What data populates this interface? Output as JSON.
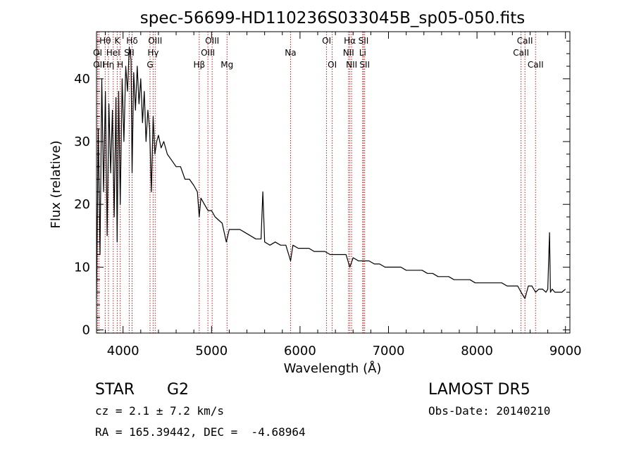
{
  "chart_data": {
    "type": "line",
    "title": "spec-56699-HD110236S033045B_sp05-050.fits",
    "xlabel": "Wavelength (Å)",
    "ylabel": "Flux (relative)",
    "xlim": [
      3700,
      9050
    ],
    "ylim": [
      -0.5,
      47.5
    ],
    "x_ticks": [
      4000,
      5000,
      6000,
      7000,
      8000,
      9000
    ],
    "x_tick_labels": [
      "4000",
      "5000",
      "6000",
      "7000",
      "8000",
      "9000"
    ],
    "x_minor_step": 200,
    "y_ticks": [
      0,
      10,
      20,
      30,
      40
    ],
    "y_tick_labels": [
      "0",
      "10",
      "20",
      "30",
      "40"
    ],
    "y_minor_step": 2,
    "grid": false,
    "line_color": "#000000",
    "marker_color": "#b22222",
    "spectrum": {
      "x": [
        3700,
        3720,
        3740,
        3760,
        3780,
        3800,
        3820,
        3840,
        3860,
        3880,
        3900,
        3920,
        3933,
        3950,
        3968,
        3990,
        4010,
        4030,
        4050,
        4070,
        4090,
        4102,
        4120,
        4140,
        4160,
        4180,
        4200,
        4220,
        4240,
        4260,
        4280,
        4300,
        4320,
        4340,
        4360,
        4380,
        4400,
        4430,
        4460,
        4500,
        4550,
        4600,
        4650,
        4700,
        4750,
        4800,
        4840,
        4861,
        4880,
        4920,
        4960,
        5000,
        5040,
        5080,
        5120,
        5167,
        5200,
        5260,
        5320,
        5380,
        5440,
        5500,
        5560,
        5580,
        5600,
        5660,
        5720,
        5780,
        5840,
        5893,
        5920,
        5980,
        6040,
        6100,
        6160,
        6220,
        6280,
        6340,
        6400,
        6460,
        6520,
        6563,
        6600,
        6660,
        6720,
        6780,
        6840,
        6900,
        6960,
        7020,
        7080,
        7140,
        7200,
        7260,
        7320,
        7380,
        7440,
        7500,
        7560,
        7620,
        7680,
        7740,
        7800,
        7860,
        7920,
        7980,
        8040,
        8100,
        8160,
        8220,
        8280,
        8340,
        8400,
        8460,
        8498,
        8542,
        8580,
        8620,
        8662,
        8700,
        8740,
        8780,
        8800,
        8820,
        8830,
        8850,
        8880,
        8920,
        8960,
        9000
      ],
      "y": [
        5,
        32,
        12,
        40,
        22,
        38,
        15,
        36,
        25,
        35,
        18,
        37,
        14,
        38,
        20,
        40,
        30,
        42,
        38,
        45,
        43,
        25,
        41,
        35,
        42,
        36,
        40,
        33,
        38,
        30,
        35,
        32,
        22,
        34,
        28,
        30,
        31,
        29,
        30,
        28,
        27,
        26,
        26,
        24,
        24,
        23,
        22,
        18,
        21,
        20,
        19,
        19,
        18,
        17.5,
        17,
        14,
        16,
        16,
        16,
        15.5,
        15,
        14.5,
        14.5,
        22,
        14,
        13.5,
        14,
        13.5,
        13.5,
        11,
        13.5,
        13,
        13,
        13,
        12.5,
        12.5,
        12.5,
        12,
        12,
        12,
        12,
        10,
        11.5,
        11,
        11,
        11,
        10.5,
        10.5,
        10,
        10,
        10,
        10,
        9.5,
        9.5,
        9.5,
        9.5,
        9,
        9,
        8.5,
        8.5,
        8.5,
        8,
        8,
        8,
        8,
        7.5,
        7.5,
        7.5,
        7.5,
        7.5,
        7.5,
        7,
        7,
        7,
        6,
        5,
        7,
        7,
        6,
        6.5,
        6.5,
        6,
        6.5,
        15.5,
        6,
        6.5,
        6,
        6,
        6,
        6.5
      ]
    },
    "line_markers": [
      {
        "label": "Hθ",
        "wavelength": 3798,
        "row": 0
      },
      {
        "label": "OI",
        "wavelength": 3712,
        "row": 1
      },
      {
        "label": "OII",
        "wavelength": 3727,
        "row": 2
      },
      {
        "label": "Hη",
        "wavelength": 3835,
        "row": 2
      },
      {
        "label": "HeI",
        "wavelength": 3889,
        "row": 1
      },
      {
        "label": "K",
        "wavelength": 3934,
        "row": 0
      },
      {
        "label": "H",
        "wavelength": 3968,
        "row": 2
      },
      {
        "label": "SII",
        "wavelength": 4070,
        "row": 1
      },
      {
        "label": "Hδ",
        "wavelength": 4102,
        "row": 0
      },
      {
        "label": "OIII",
        "wavelength": 4363,
        "row": 0
      },
      {
        "label": "Hγ",
        "wavelength": 4340,
        "row": 1
      },
      {
        "label": "G",
        "wavelength": 4305,
        "row": 2
      },
      {
        "label": "Hβ",
        "wavelength": 4861,
        "row": 2
      },
      {
        "label": "OIII",
        "wavelength": 5007,
        "row": 0
      },
      {
        "label": "OIII",
        "wavelength": 4959,
        "row": 1
      },
      {
        "label": "Mg",
        "wavelength": 5175,
        "row": 2
      },
      {
        "label": "Na",
        "wavelength": 5893,
        "row": 1
      },
      {
        "label": "OI",
        "wavelength": 6300,
        "row": 0
      },
      {
        "label": "OI",
        "wavelength": 6364,
        "row": 2
      },
      {
        "label": "Hα",
        "wavelength": 6563,
        "row": 0
      },
      {
        "label": "NII",
        "wavelength": 6548,
        "row": 1
      },
      {
        "label": "NII",
        "wavelength": 6583,
        "row": 2
      },
      {
        "label": "SII",
        "wavelength": 6717,
        "row": 0
      },
      {
        "label": "Li",
        "wavelength": 6708,
        "row": 1
      },
      {
        "label": "SII",
        "wavelength": 6731,
        "row": 2
      },
      {
        "label": "CaII",
        "wavelength": 8542,
        "row": 0
      },
      {
        "label": "CaII",
        "wavelength": 8498,
        "row": 1
      },
      {
        "label": "CaII",
        "wavelength": 8662,
        "row": 2
      }
    ]
  },
  "info": {
    "object_type": "STAR",
    "subclass": "G2",
    "survey": "LAMOST DR5",
    "redshift_line": "cz = 2.1 ± 7.2 km/s",
    "obs_date": "Obs-Date: 20140210",
    "coords": "RA = 165.39442, DEC =  -4.68964"
  }
}
